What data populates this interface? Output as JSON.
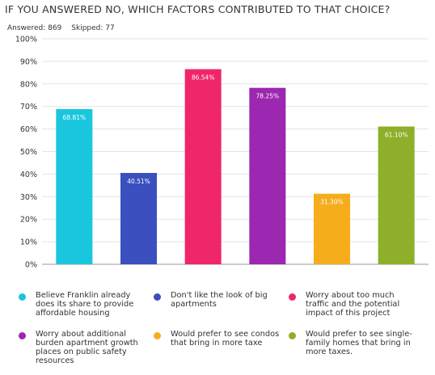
{
  "question": {
    "title": "IF YOU ANSWERED NO, WHICH FACTORS CONTRIBUTED TO THAT CHOICE?",
    "answered": "Answered: 869",
    "skipped": "Skipped: 77"
  },
  "chart_data": {
    "type": "bar",
    "ylim": [
      0,
      100
    ],
    "yticks": [
      "0%",
      "10%",
      "20%",
      "30%",
      "40%",
      "50%",
      "60%",
      "70%",
      "80%",
      "90%",
      "100%"
    ],
    "grid": true,
    "legend_position": "bottom",
    "categories": [
      "Believe Franklin already does its share to provide affordable housing",
      "Don't like the look of big apartments",
      "Worry about too much traffic and the potential impact of this project",
      "Worry about additional burden apartment growth places on public safety resources",
      "Would prefer to see condos that bring in more taxe",
      "Would prefer to see single-family homes that bring in more taxes."
    ],
    "values": [
      68.81,
      40.51,
      86.54,
      78.25,
      31.3,
      61.1
    ],
    "value_labels": [
      "68.81%",
      "40.51%",
      "86.54%",
      "78.25%",
      "31.30%",
      "61.10%"
    ],
    "colors": [
      "#1ac6dd",
      "#3b4fbf",
      "#f0266b",
      "#9c27b0",
      "#f5ad1c",
      "#8daf2a"
    ]
  },
  "legend": {
    "items": [
      {
        "label": "Believe Franklin already does its share to provide affordable housing",
        "color": "#1ac6dd"
      },
      {
        "label": "Don't like the look of big apartments",
        "color": "#3b4fbf"
      },
      {
        "label": "Worry about too much traffic and the potential impact of this project",
        "color": "#f0266b"
      },
      {
        "label": "Worry about additional burden apartment growth places on public safety resources",
        "color": "#9c27b0"
      },
      {
        "label": "Would prefer to see condos that bring in more taxe",
        "color": "#f5ad1c"
      },
      {
        "label": "Would prefer to see single-family homes that bring in more taxes.",
        "color": "#8daf2a"
      }
    ]
  }
}
